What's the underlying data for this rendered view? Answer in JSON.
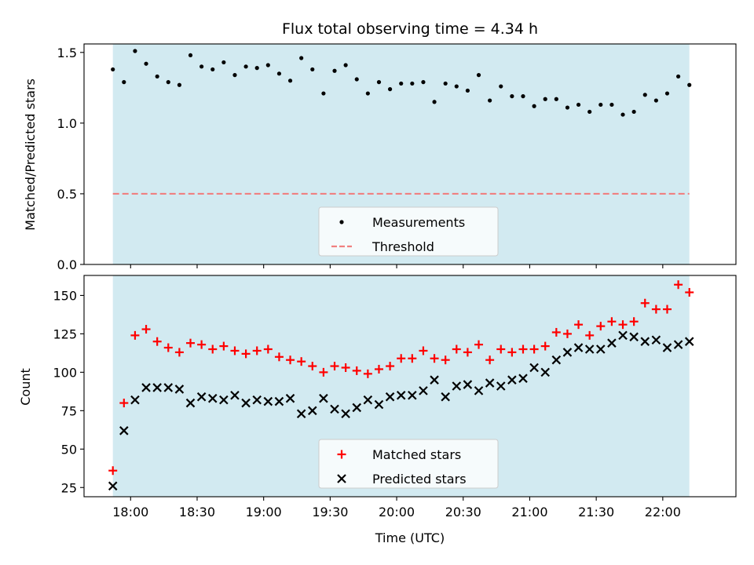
{
  "chart_data": {
    "type": "scatter",
    "title": "Flux total observing time = 4.34 h",
    "xlabel": "Time (UTC)",
    "x_tick_labels": [
      "18:00",
      "18:30",
      "19:00",
      "19:30",
      "20:00",
      "20:30",
      "21:00",
      "21:30",
      "22:00"
    ],
    "x_tick_minutes": [
      1080,
      1110,
      1140,
      1170,
      1200,
      1230,
      1260,
      1290,
      1320
    ],
    "xlim_minutes": [
      1059,
      1353
    ],
    "shaded_span_minutes": [
      1072,
      1332
    ],
    "shade_color": "#add8e6",
    "times_minutes": [
      1072,
      1077,
      1082,
      1087,
      1092,
      1097,
      1102,
      1107,
      1112,
      1117,
      1122,
      1127,
      1132,
      1137,
      1142,
      1147,
      1152,
      1157,
      1162,
      1167,
      1172,
      1177,
      1182,
      1187,
      1192,
      1197,
      1202,
      1207,
      1212,
      1217,
      1222,
      1227,
      1232,
      1237,
      1242,
      1247,
      1252,
      1257,
      1262,
      1267,
      1272,
      1277,
      1282,
      1287,
      1292,
      1297,
      1302,
      1307,
      1312,
      1317,
      1322,
      1327,
      1332
    ],
    "panels": {
      "top": {
        "ylabel": "Matched/Predicted stars",
        "ylim": [
          0,
          1.56
        ],
        "y_ticks": [
          0.0,
          0.5,
          1.0,
          1.5
        ],
        "y_tick_labels": [
          "0.0",
          "0.5",
          "1.0",
          "1.5"
        ],
        "threshold": 0.5,
        "threshold_color": "#f08080",
        "series": [
          {
            "name": "Measurements",
            "marker": "dot",
            "color": "#000000",
            "values": [
              1.38,
              1.29,
              1.51,
              1.42,
              1.33,
              1.29,
              1.27,
              1.48,
              1.4,
              1.38,
              1.43,
              1.34,
              1.4,
              1.39,
              1.41,
              1.35,
              1.3,
              1.46,
              1.38,
              1.21,
              1.37,
              1.41,
              1.31,
              1.21,
              1.29,
              1.24,
              1.28,
              1.28,
              1.29,
              1.15,
              1.28,
              1.26,
              1.23,
              1.34,
              1.16,
              1.26,
              1.19,
              1.19,
              1.12,
              1.17,
              1.17,
              1.11,
              1.13,
              1.08,
              1.13,
              1.13,
              1.06,
              1.08,
              1.2,
              1.16,
              1.21,
              1.33,
              1.27
            ]
          }
        ],
        "legend": [
          {
            "label": "Measurements",
            "marker": "dot",
            "color": "#000000"
          },
          {
            "label": "Threshold",
            "marker": "dashed-line",
            "color": "#f08080"
          }
        ],
        "legend_position": "bottom-center"
      },
      "bottom": {
        "ylabel": "Count",
        "ylim": [
          19,
          163
        ],
        "y_ticks": [
          25,
          50,
          75,
          100,
          125,
          150
        ],
        "y_tick_labels": [
          "25",
          "50",
          "75",
          "100",
          "125",
          "150"
        ],
        "series": [
          {
            "name": "Matched stars",
            "marker": "plus",
            "color": "#ff0000",
            "values": [
              36,
              80,
              124,
              128,
              120,
              116,
              113,
              119,
              118,
              115,
              117,
              114,
              112,
              114,
              115,
              110,
              108,
              107,
              104,
              100,
              104,
              103,
              101,
              99,
              102,
              104,
              109,
              109,
              114,
              109,
              108,
              115,
              113,
              118,
              108,
              115,
              113,
              115,
              115,
              117,
              126,
              125,
              131,
              124,
              130,
              133,
              131,
              133,
              145,
              141,
              141,
              157,
              152
            ]
          },
          {
            "name": "Predicted stars",
            "marker": "x",
            "color": "#000000",
            "values": [
              26,
              62,
              82,
              90,
              90,
              90,
              89,
              80,
              84,
              83,
              82,
              85,
              80,
              82,
              81,
              81,
              83,
              73,
              75,
              83,
              76,
              73,
              77,
              82,
              79,
              84,
              85,
              85,
              88,
              95,
              84,
              91,
              92,
              88,
              93,
              91,
              95,
              96,
              103,
              100,
              108,
              113,
              116,
              115,
              115,
              119,
              124,
              123,
              120,
              121,
              116,
              118,
              120
            ]
          }
        ],
        "legend": [
          {
            "label": "Matched stars",
            "marker": "plus",
            "color": "#ff0000"
          },
          {
            "label": "Predicted stars",
            "marker": "x",
            "color": "#000000"
          }
        ],
        "legend_position": "bottom-center"
      }
    }
  }
}
